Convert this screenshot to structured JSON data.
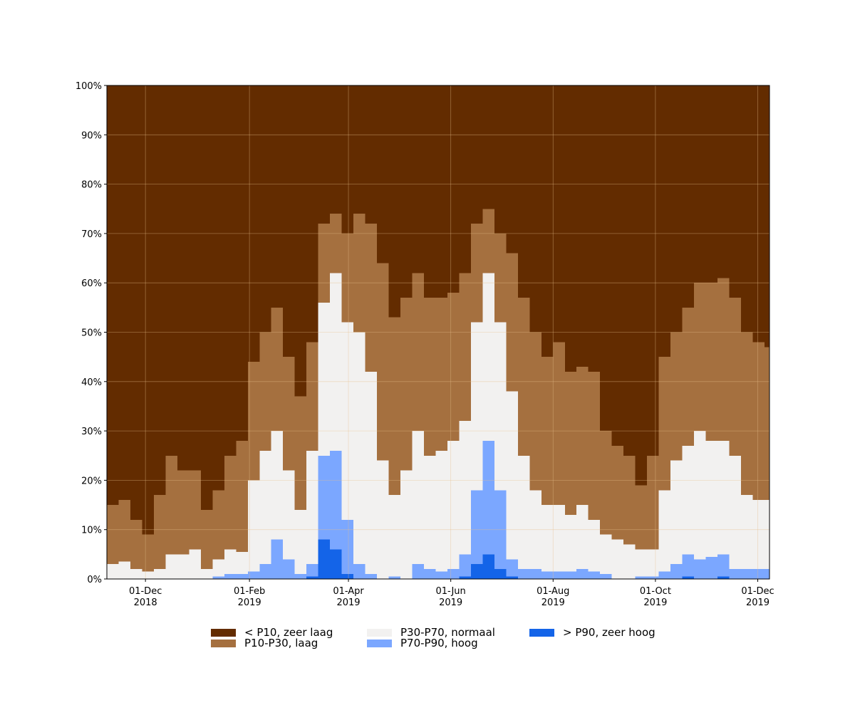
{
  "chart_data": {
    "type": "stacked-step-area",
    "x": [
      "2018-11-08",
      "2018-11-15",
      "2018-11-22",
      "2018-11-29",
      "2018-12-06",
      "2018-12-13",
      "2018-12-20",
      "2018-12-27",
      "2019-01-03",
      "2019-01-10",
      "2019-01-17",
      "2019-01-24",
      "2019-01-31",
      "2019-02-07",
      "2019-02-14",
      "2019-02-21",
      "2019-02-28",
      "2019-03-07",
      "2019-03-14",
      "2019-03-21",
      "2019-03-28",
      "2019-04-04",
      "2019-04-11",
      "2019-04-18",
      "2019-04-25",
      "2019-05-02",
      "2019-05-09",
      "2019-05-16",
      "2019-05-23",
      "2019-05-30",
      "2019-06-06",
      "2019-06-13",
      "2019-06-20",
      "2019-06-27",
      "2019-07-04",
      "2019-07-11",
      "2019-07-18",
      "2019-07-25",
      "2019-08-01",
      "2019-08-08",
      "2019-08-15",
      "2019-08-22",
      "2019-08-29",
      "2019-09-05",
      "2019-09-12",
      "2019-09-19",
      "2019-09-26",
      "2019-10-03",
      "2019-10-10",
      "2019-10-17",
      "2019-10-24",
      "2019-10-31",
      "2019-11-07",
      "2019-11-14",
      "2019-11-21",
      "2019-11-28",
      "2019-12-05"
    ],
    "series": [
      {
        "name": "< P10, zeer laag",
        "color": "#632c00",
        "values": [
          85,
          84,
          88,
          91,
          83,
          75,
          78,
          78,
          86,
          82,
          75,
          72,
          56,
          50,
          45,
          55,
          63,
          52,
          28,
          26,
          30,
          26,
          28,
          36,
          47,
          43,
          38,
          43,
          43,
          42,
          38,
          28,
          25,
          30,
          34,
          43,
          50,
          55,
          52,
          58,
          57,
          58,
          70,
          73,
          75,
          81,
          75,
          55,
          50,
          45,
          40,
          40,
          39,
          43,
          50,
          52,
          53
        ]
      },
      {
        "name": "P10-P30, laag",
        "color": "#a5703f",
        "values": [
          12,
          12.5,
          10,
          7.5,
          15,
          20,
          17,
          16,
          12,
          14,
          19,
          22.5,
          24,
          24,
          25,
          23,
          23,
          22,
          16,
          12,
          18,
          24,
          30,
          40,
          36,
          35,
          32,
          32,
          31,
          30,
          30,
          20,
          13,
          18,
          28,
          32,
          32,
          30,
          33,
          29,
          28,
          30,
          21,
          19,
          18,
          13,
          19,
          27,
          26,
          28,
          30,
          32,
          33,
          32,
          33,
          32,
          31
        ]
      },
      {
        "name": "P30-P70, normaal",
        "color": "#f2f1f0",
        "values": [
          3,
          3.5,
          2,
          1.5,
          2,
          5,
          5,
          6,
          2,
          3.5,
          5,
          4.5,
          18.5,
          23,
          22,
          18,
          13,
          23,
          31,
          36,
          40,
          47,
          41,
          24,
          16.5,
          22,
          27,
          23,
          24.5,
          26,
          27,
          34,
          34,
          34,
          34,
          23,
          16,
          13.5,
          13.5,
          11.5,
          13,
          10.5,
          8,
          8,
          7,
          5.5,
          5.5,
          16.5,
          21,
          22,
          26,
          23.5,
          23,
          23,
          15,
          14,
          14
        ]
      },
      {
        "name": "P70-P90, hoog",
        "color": "#7ba7ff",
        "values": [
          0,
          0,
          0,
          0,
          0,
          0,
          0,
          0,
          0,
          0.5,
          1,
          1,
          1.5,
          3,
          8,
          4,
          1,
          2.5,
          17,
          20,
          11,
          3,
          1,
          0,
          0.5,
          0,
          3,
          2,
          1.5,
          2,
          4.5,
          15,
          23,
          16,
          3.5,
          2,
          2,
          1.5,
          1.5,
          1.5,
          2,
          1.5,
          1,
          0,
          0,
          0.5,
          0.5,
          1.5,
          3,
          4.5,
          4,
          4.5,
          4.5,
          2,
          2,
          2,
          2
        ]
      },
      {
        "name": "> P90, zeer hoog",
        "color": "#1464e8",
        "values": [
          0,
          0,
          0,
          0,
          0,
          0,
          0,
          0,
          0,
          0,
          0,
          0,
          0,
          0,
          0,
          0,
          0,
          0.5,
          8,
          6,
          1,
          0,
          0,
          0,
          0,
          0,
          0,
          0,
          0,
          0,
          0.5,
          3,
          5,
          2,
          0.5,
          0,
          0,
          0,
          0,
          0,
          0,
          0,
          0,
          0,
          0,
          0,
          0,
          0,
          0,
          0.5,
          0,
          0,
          0.5,
          0,
          0,
          0,
          0
        ]
      }
    ],
    "xlim": [
      "2018-11-08",
      "2019-12-08"
    ],
    "xticks": [
      {
        "value": "2018-12-01",
        "label": "01-Dec\n2018"
      },
      {
        "value": "2019-02-01",
        "label": "01-Feb\n2019"
      },
      {
        "value": "2019-04-01",
        "label": "01-Apr\n2019"
      },
      {
        "value": "2019-06-01",
        "label": "01-Jun\n2019"
      },
      {
        "value": "2019-08-01",
        "label": "01-Aug\n2019"
      },
      {
        "value": "2019-10-01",
        "label": "01-Oct\n2019"
      },
      {
        "value": "2019-12-01",
        "label": "01-Dec\n2019"
      }
    ],
    "ylim": [
      0,
      100
    ],
    "yticks": [
      {
        "value": 0,
        "label": "0%"
      },
      {
        "value": 10,
        "label": "10%"
      },
      {
        "value": 20,
        "label": "20%"
      },
      {
        "value": 30,
        "label": "30%"
      },
      {
        "value": 40,
        "label": "40%"
      },
      {
        "value": 50,
        "label": "50%"
      },
      {
        "value": 60,
        "label": "60%"
      },
      {
        "value": 70,
        "label": "70%"
      },
      {
        "value": 80,
        "label": "80%"
      },
      {
        "value": 90,
        "label": "90%"
      },
      {
        "value": 100,
        "label": "100%"
      }
    ],
    "grid": true,
    "legend": "bottom"
  }
}
